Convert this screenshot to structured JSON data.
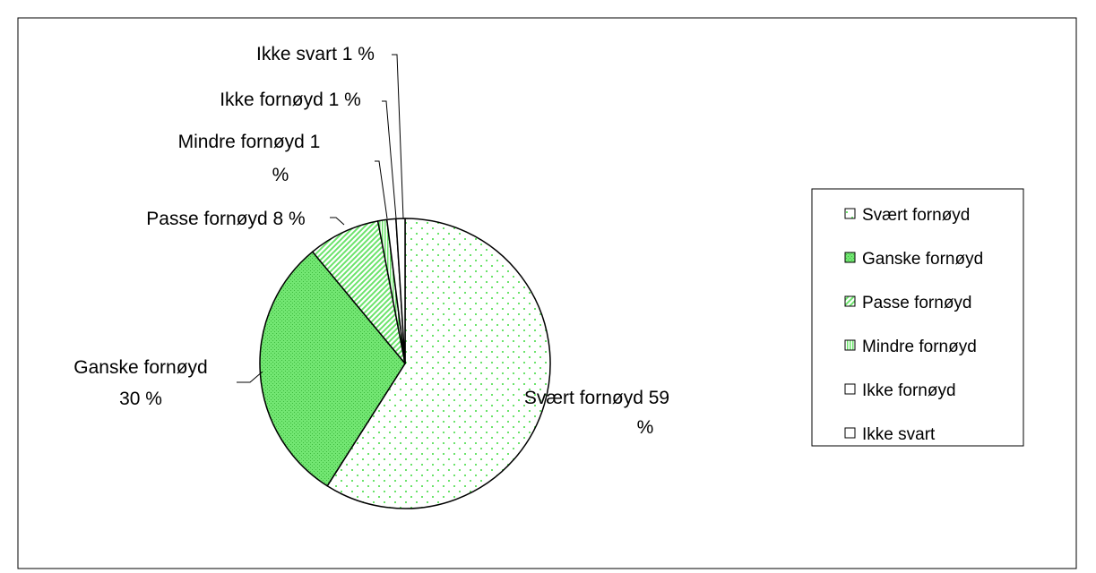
{
  "chart_data": {
    "type": "pie",
    "slices": [
      {
        "label": "Svært fornøyd",
        "value": 59,
        "data_label": "Svært fornøyd 59 %",
        "color": "#7CE87C",
        "pattern": "sparse-dots"
      },
      {
        "label": "Ganske fornøyd",
        "value": 30,
        "data_label": "Ganske fornøyd 30 %",
        "color": "#6BE36B",
        "pattern": "dense-dots"
      },
      {
        "label": "Passe fornøyd",
        "value": 8,
        "data_label": "Passe fornøyd 8 %",
        "color": "#7CE87C",
        "pattern": "diagonal"
      },
      {
        "label": "Mindre fornøyd",
        "value": 1,
        "data_label": "Mindre fornøyd 1 %",
        "color": "#7CE87C",
        "pattern": "vertical"
      },
      {
        "label": "Ikke fornøyd",
        "value": 1,
        "data_label": "Ikke fornøyd 1 %",
        "color": "#ffffff",
        "pattern": "none"
      },
      {
        "label": "Ikke svart",
        "value": 1,
        "data_label": "Ikke svart 1 %",
        "color": "#ffffff",
        "pattern": "none"
      }
    ],
    "legend_position": "right",
    "outline_color": "#000000"
  }
}
